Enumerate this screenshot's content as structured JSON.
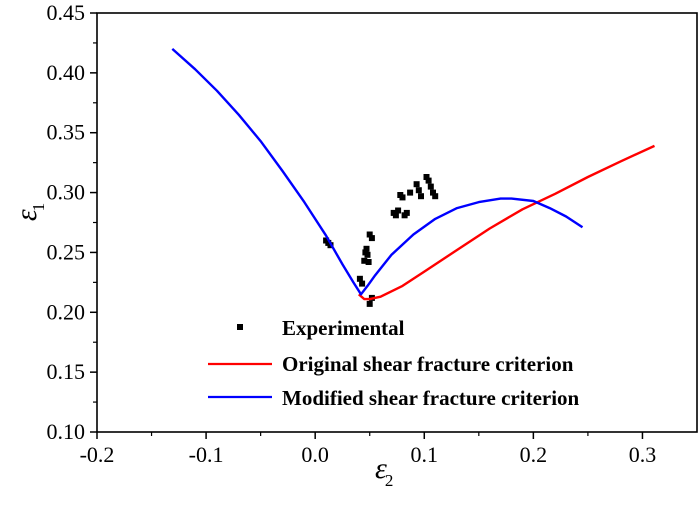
{
  "chart_data": {
    "type": "scatter",
    "xlabel": "ε",
    "xlabel_sub": "2",
    "ylabel": "ε",
    "ylabel_sub": "1",
    "xlim": [
      -0.2,
      0.35
    ],
    "ylim": [
      0.1,
      0.45
    ],
    "x_ticks": [
      "-0.2",
      "-0.1",
      "0.0",
      "0.1",
      "0.2",
      "0.3"
    ],
    "x_tick_values": [
      -0.2,
      -0.1,
      0.0,
      0.1,
      0.2,
      0.3
    ],
    "y_ticks": [
      "0.10",
      "0.15",
      "0.20",
      "0.25",
      "0.30",
      "0.35",
      "0.40",
      "0.45"
    ],
    "y_tick_values": [
      0.1,
      0.15,
      0.2,
      0.25,
      0.3,
      0.35,
      0.4,
      0.45
    ],
    "grid": false,
    "legend_position": "bottom-right",
    "series": [
      {
        "name": "Experimental",
        "kind": "scatter",
        "marker": "square",
        "color": "#000000",
        "x": [
          0.01,
          0.012,
          0.014,
          0.041,
          0.043,
          0.045,
          0.046,
          0.047,
          0.048,
          0.049,
          0.05,
          0.052,
          0.05,
          0.052,
          0.072,
          0.074,
          0.076,
          0.078,
          0.08,
          0.082,
          0.084,
          0.087,
          0.093,
          0.095,
          0.097,
          0.102,
          0.104,
          0.106,
          0.108,
          0.11
        ],
        "y": [
          0.26,
          0.258,
          0.256,
          0.228,
          0.224,
          0.243,
          0.25,
          0.253,
          0.248,
          0.242,
          0.265,
          0.262,
          0.207,
          0.212,
          0.283,
          0.281,
          0.285,
          0.298,
          0.296,
          0.281,
          0.283,
          0.3,
          0.307,
          0.302,
          0.297,
          0.313,
          0.31,
          0.305,
          0.3,
          0.297
        ]
      },
      {
        "name": "Original shear fracture criterion",
        "kind": "line",
        "color": "#ff0000",
        "x": [
          0.04,
          0.045,
          0.05,
          0.06,
          0.08,
          0.1,
          0.13,
          0.16,
          0.19,
          0.22,
          0.25,
          0.28,
          0.311
        ],
        "y": [
          0.215,
          0.211,
          0.211,
          0.213,
          0.222,
          0.234,
          0.252,
          0.27,
          0.286,
          0.299,
          0.313,
          0.326,
          0.339
        ]
      },
      {
        "name": "Modified shear fracture criterion",
        "kind": "line",
        "color": "#0000ff",
        "x": [
          -0.131,
          -0.11,
          -0.09,
          -0.07,
          -0.05,
          -0.03,
          -0.01,
          0.01,
          0.025,
          0.035,
          0.042,
          0.048,
          0.055,
          0.07,
          0.09,
          0.11,
          0.13,
          0.15,
          0.17,
          0.18,
          0.2,
          0.215,
          0.23,
          0.245
        ],
        "y": [
          0.42,
          0.403,
          0.385,
          0.365,
          0.343,
          0.318,
          0.292,
          0.264,
          0.24,
          0.225,
          0.215,
          0.222,
          0.231,
          0.248,
          0.265,
          0.278,
          0.287,
          0.292,
          0.295,
          0.295,
          0.293,
          0.287,
          0.28,
          0.271
        ]
      }
    ]
  }
}
